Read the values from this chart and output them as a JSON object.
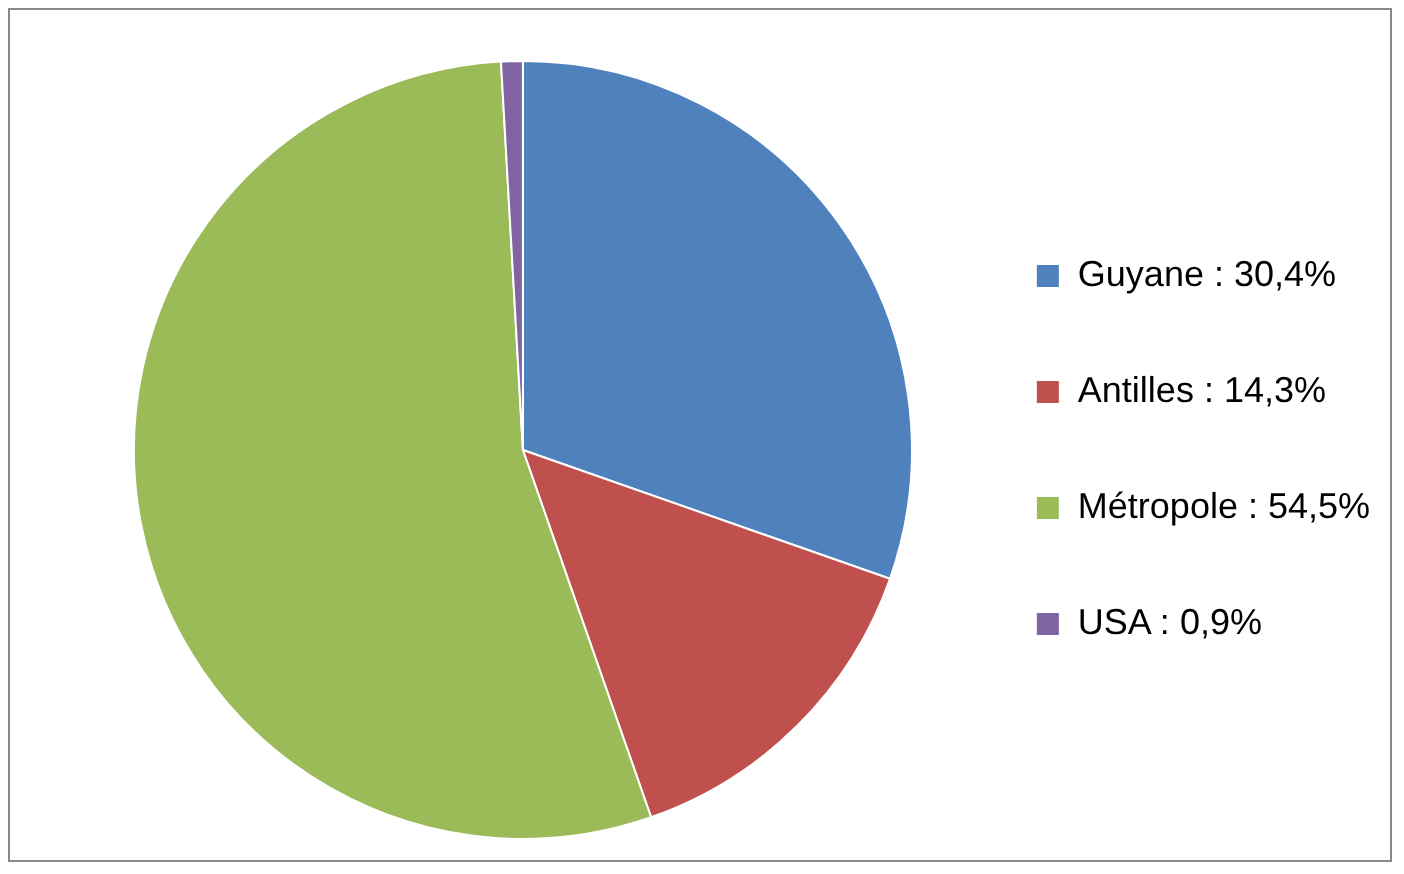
{
  "chart_data": {
    "type": "pie",
    "categories": [
      "Guyane : 30,4%",
      "Antilles : 14,3%",
      "Métropole : 54,5%",
      "USA : 0,9%"
    ],
    "values": [
      30.4,
      14.3,
      54.5,
      0.9
    ],
    "colors": [
      "#4f81bd",
      "#c0504d",
      "#9bbb59",
      "#8064a2"
    ],
    "legend": "right"
  }
}
